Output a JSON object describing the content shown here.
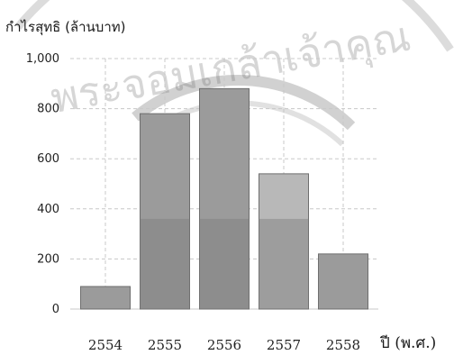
{
  "chart_data": {
    "type": "bar",
    "ylabel": "กำไรสุทธิ (ล้านบาท)",
    "xlabel": "ปี (พ.ศ.)",
    "categories": [
      "2554",
      "2555",
      "2556",
      "2557",
      "2558"
    ],
    "values": [
      90,
      780,
      880,
      540,
      220
    ],
    "ylim": [
      0,
      1000
    ],
    "yticks": [
      "0",
      "200",
      "400",
      "600",
      "800",
      "1,000"
    ],
    "ytick_values": [
      0,
      200,
      400,
      600,
      800,
      1000
    ],
    "grid": true,
    "legend": "none"
  },
  "watermark": {
    "text": "พระจอมเกล้าเจ้าคุณ"
  },
  "colors": {
    "bar": "#9b9b9b",
    "bar_light": "#b8b8b8",
    "bar_dark": "#7d7d7d",
    "grid": "#c8c8c8",
    "axis": "#888888"
  }
}
